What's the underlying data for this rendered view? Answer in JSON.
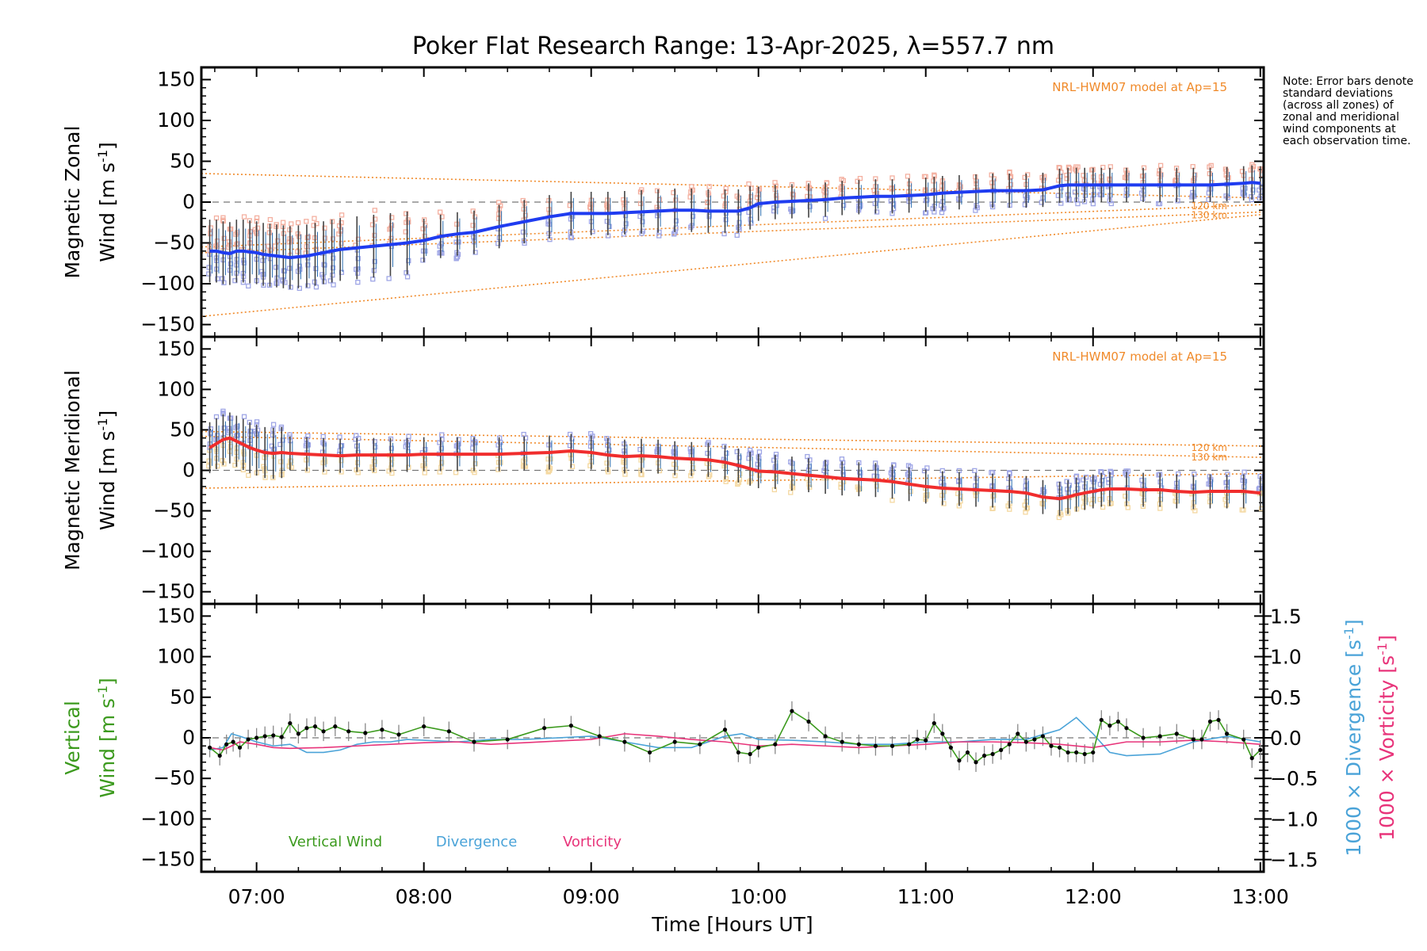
{
  "title": "Poker Flat Research Range: 13-Apr-2025, λ=557.7 nm",
  "note": "Note: Error bars denote standard deviations (across all zones) of zonal and meridional wind components at each observation time.",
  "colors": {
    "zonal": "#1f3cf0",
    "meridional": "#f02d2d",
    "vertical": "#3c9a1e",
    "divergence": "#4aa3d8",
    "vorticity": "#e8347a",
    "model": "#f08a2a",
    "zones_light_red": "#f4b0a0",
    "zones_light_blue": "#9fa6e6",
    "errorbar": "#444444"
  },
  "chart_data": [
    {
      "type": "line",
      "name": "zonal-panel",
      "ylabel_1": "Magnetic Zonal",
      "ylabel_2": "Wind [m s",
      "ylabel_sup": "-1",
      "ylabel_end": "]",
      "ylim": [
        -165,
        165
      ],
      "yticks": [
        -150,
        -100,
        -50,
        0,
        50,
        100,
        150
      ],
      "xlim": [
        6.67,
        13.02
      ],
      "model_label": "NRL-HWM07 model at Ap=15",
      "km_labels": [
        "120 km",
        "130 km"
      ],
      "series": [
        {
          "x": [
            6.72,
            6.76,
            6.8,
            6.84,
            6.88,
            6.92,
            6.96,
            7.0,
            7.04,
            7.08,
            7.12,
            7.16,
            7.2,
            7.25,
            7.3,
            7.35,
            7.4,
            7.45,
            7.5,
            7.6,
            7.7,
            7.8,
            7.9,
            8.0,
            8.1,
            8.2,
            8.3,
            8.45,
            8.6,
            8.75,
            8.88,
            9.0,
            9.1,
            9.2,
            9.3,
            9.4,
            9.5,
            9.6,
            9.7,
            9.8,
            9.88,
            9.95,
            10.0,
            10.1,
            10.2,
            10.3,
            10.4,
            10.5,
            10.6,
            10.7,
            10.8,
            10.9,
            11.0,
            11.05,
            11.1,
            11.2,
            11.3,
            11.4,
            11.5,
            11.6,
            11.7,
            11.8,
            11.85,
            11.9,
            11.95,
            12.0,
            12.05,
            12.1,
            12.2,
            12.3,
            12.4,
            12.5,
            12.6,
            12.7,
            12.8,
            12.9,
            12.95,
            13.0
          ],
          "values": [
            -60,
            -60,
            -62,
            -63,
            -60,
            -60,
            -61,
            -62,
            -64,
            -65,
            -66,
            -67,
            -68,
            -67,
            -66,
            -64,
            -62,
            -60,
            -58,
            -56,
            -54,
            -52,
            -50,
            -47,
            -42,
            -39,
            -37,
            -30,
            -24,
            -18,
            -14,
            -14,
            -14,
            -13,
            -12,
            -11,
            -10,
            -10,
            -11,
            -11,
            -11,
            -7,
            -2,
            0,
            1,
            2,
            3,
            5,
            6,
            7,
            7,
            8,
            9,
            10,
            11,
            12,
            13,
            14,
            14,
            14,
            15,
            20,
            21,
            21,
            21,
            21,
            21,
            21,
            21,
            21,
            21,
            21,
            21,
            21,
            22,
            23,
            24,
            23
          ]
        },
        {
          "name": "120 km",
          "x": [
            6.67,
            13.02
          ],
          "values": [
            -55,
            -3
          ]
        },
        {
          "name": "130 km",
          "x": [
            6.67,
            13.02
          ],
          "values": [
            -62,
            -12
          ]
        },
        {
          "x": [
            6.67,
            13.02
          ],
          "values": [
            35,
            5
          ]
        },
        {
          "x": [
            6.67,
            13.02
          ],
          "values": [
            -140,
            -15
          ]
        }
      ]
    },
    {
      "type": "line",
      "name": "meridional-panel",
      "ylabel_1": "Magnetic Meridional",
      "ylabel_2": "Wind [m s",
      "ylabel_sup": "-1",
      "ylabel_end": "]",
      "ylim": [
        -165,
        165
      ],
      "yticks": [
        -150,
        -100,
        -50,
        0,
        50,
        100,
        150
      ],
      "xlim": [
        6.67,
        13.02
      ],
      "model_label": "NRL-HWM07 model at Ap=15",
      "km_labels": [
        "120 km",
        "130 km"
      ],
      "series": [
        {
          "x": [
            6.72,
            6.76,
            6.8,
            6.84,
            6.88,
            6.92,
            6.96,
            7.0,
            7.05,
            7.1,
            7.15,
            7.2,
            7.3,
            7.4,
            7.5,
            7.6,
            7.7,
            7.8,
            7.9,
            8.0,
            8.1,
            8.2,
            8.3,
            8.45,
            8.6,
            8.75,
            8.88,
            9.0,
            9.1,
            9.2,
            9.3,
            9.4,
            9.5,
            9.6,
            9.7,
            9.8,
            9.88,
            9.95,
            10.0,
            10.1,
            10.2,
            10.3,
            10.4,
            10.5,
            10.6,
            10.7,
            10.8,
            10.9,
            11.0,
            11.1,
            11.2,
            11.3,
            11.4,
            11.5,
            11.6,
            11.7,
            11.8,
            11.85,
            11.9,
            11.95,
            12.0,
            12.05,
            12.1,
            12.2,
            12.3,
            12.4,
            12.5,
            12.6,
            12.7,
            12.8,
            12.9,
            13.0
          ],
          "values": [
            28,
            33,
            38,
            40,
            36,
            32,
            28,
            25,
            22,
            21,
            22,
            21,
            20,
            19,
            18,
            19,
            19,
            19,
            19,
            20,
            20,
            20,
            20,
            20,
            21,
            22,
            24,
            22,
            19,
            17,
            18,
            17,
            15,
            14,
            13,
            10,
            6,
            2,
            -1,
            -2,
            -4,
            -6,
            -8,
            -10,
            -11,
            -12,
            -14,
            -17,
            -20,
            -22,
            -23,
            -24,
            -25,
            -26,
            -28,
            -33,
            -35,
            -33,
            -30,
            -28,
            -26,
            -24,
            -23,
            -23,
            -24,
            -24,
            -26,
            -27,
            -26,
            -26,
            -26,
            -28
          ]
        },
        {
          "name": "120 km",
          "x": [
            6.67,
            13.02
          ],
          "values": [
            48,
            30
          ]
        },
        {
          "name": "130 km",
          "x": [
            6.67,
            13.02
          ],
          "values": [
            42,
            16
          ]
        },
        {
          "x": [
            6.67,
            13.02
          ],
          "values": [
            -22,
            -4
          ]
        }
      ]
    },
    {
      "type": "line",
      "name": "vertical-panel",
      "ylabel_1": "Vertical",
      "ylabel_2": "Wind [m s",
      "ylabel_sup": "-1",
      "ylabel_end": "]",
      "ylim": [
        -165,
        165
      ],
      "yticks": [
        -150,
        -100,
        -50,
        0,
        50,
        100,
        150
      ],
      "y2lim": [
        -1.65,
        1.65
      ],
      "y2ticks": [
        -1.5,
        -1.0,
        -0.5,
        0.0,
        0.5,
        1.0,
        1.5
      ],
      "y2tick_labels": [
        "−1.5",
        "−1.0",
        "−0.5",
        "0.0",
        "0.5",
        "1.0",
        "1.5"
      ],
      "y2label_div_1": "1000 × Divergence [s",
      "y2label_div_sup": "-1",
      "y2label_div_end": "]",
      "y2label_vor_1": "1000 × Vorticity [s",
      "y2label_vor_sup": "-1",
      "y2label_vor_end": "]",
      "xlim": [
        6.67,
        13.02
      ],
      "xticks": [
        7,
        8,
        9,
        10,
        11,
        12,
        13
      ],
      "xtick_labels": [
        "07:00",
        "08:00",
        "09:00",
        "10:00",
        "11:00",
        "12:00",
        "13:00"
      ],
      "xlabel": "Time [Hours UT]",
      "legend": [
        "Vertical Wind",
        "Divergence",
        "Vorticity"
      ],
      "series": [
        {
          "name": "Vertical Wind",
          "x": [
            6.72,
            6.78,
            6.82,
            6.86,
            6.9,
            6.95,
            7.0,
            7.05,
            7.1,
            7.15,
            7.2,
            7.25,
            7.3,
            7.35,
            7.4,
            7.47,
            7.55,
            7.65,
            7.75,
            7.85,
            8.0,
            8.15,
            8.3,
            8.5,
            8.72,
            8.88,
            9.05,
            9.2,
            9.35,
            9.5,
            9.65,
            9.8,
            9.88,
            9.95,
            10.0,
            10.1,
            10.2,
            10.3,
            10.4,
            10.5,
            10.6,
            10.7,
            10.8,
            10.9,
            10.95,
            11.0,
            11.05,
            11.1,
            11.15,
            11.2,
            11.25,
            11.3,
            11.35,
            11.4,
            11.45,
            11.5,
            11.55,
            11.6,
            11.65,
            11.7,
            11.75,
            11.8,
            11.85,
            11.9,
            11.95,
            12.0,
            12.05,
            12.1,
            12.15,
            12.2,
            12.3,
            12.4,
            12.5,
            12.6,
            12.65,
            12.7,
            12.75,
            12.8,
            12.9,
            12.95,
            13.0
          ],
          "values": [
            -12,
            -22,
            -8,
            -5,
            -12,
            -2,
            0,
            2,
            3,
            1,
            18,
            5,
            12,
            14,
            8,
            14,
            8,
            6,
            10,
            4,
            14,
            8,
            -5,
            -2,
            12,
            15,
            2,
            -5,
            -18,
            -5,
            -8,
            10,
            -18,
            -20,
            -12,
            -8,
            33,
            20,
            2,
            -5,
            -8,
            -10,
            -10,
            -8,
            -2,
            -3,
            18,
            5,
            -12,
            -28,
            -18,
            -30,
            -22,
            -20,
            -15,
            -8,
            5,
            -5,
            -2,
            2,
            -10,
            -12,
            -18,
            -18,
            -20,
            -18,
            22,
            15,
            20,
            12,
            0,
            2,
            5,
            -2,
            -2,
            20,
            22,
            5,
            -2,
            -25,
            -15
          ]
        },
        {
          "name": "Divergence",
          "x": [
            6.72,
            6.8,
            6.85,
            6.9,
            7.0,
            7.1,
            7.2,
            7.3,
            7.4,
            7.5,
            7.6,
            7.7,
            7.8,
            7.9,
            8.0,
            8.2,
            8.4,
            8.6,
            8.8,
            9.0,
            9.2,
            9.4,
            9.6,
            9.8,
            9.9,
            10.0,
            10.2,
            10.4,
            10.6,
            10.8,
            11.0,
            11.2,
            11.4,
            11.6,
            11.8,
            11.9,
            12.0,
            12.1,
            12.2,
            12.4,
            12.6,
            12.8,
            13.0
          ],
          "values": [
            -0.15,
            -0.12,
            0.05,
            0.02,
            -0.05,
            -0.1,
            -0.08,
            -0.18,
            -0.18,
            -0.15,
            -0.08,
            -0.05,
            -0.05,
            -0.02,
            -0.03,
            -0.05,
            -0.02,
            -0.02,
            0.0,
            0.02,
            -0.05,
            -0.12,
            -0.12,
            0.02,
            0.05,
            -0.02,
            -0.03,
            -0.05,
            -0.08,
            -0.08,
            -0.05,
            -0.05,
            -0.02,
            -0.02,
            0.1,
            0.25,
            0.05,
            -0.18,
            -0.22,
            -0.2,
            -0.05,
            0.02,
            -0.05
          ]
        },
        {
          "name": "Vorticity",
          "x": [
            6.72,
            6.8,
            6.9,
            7.0,
            7.1,
            7.2,
            7.4,
            7.6,
            7.8,
            8.0,
            8.2,
            8.4,
            8.6,
            8.8,
            9.0,
            9.2,
            9.4,
            9.6,
            9.8,
            10.0,
            10.2,
            10.4,
            10.6,
            10.8,
            11.0,
            11.2,
            11.4,
            11.6,
            11.8,
            12.0,
            12.2,
            12.4,
            12.6,
            12.8,
            13.0
          ],
          "values": [
            -0.12,
            -0.15,
            -0.05,
            -0.08,
            -0.12,
            -0.13,
            -0.12,
            -0.1,
            -0.08,
            -0.06,
            -0.05,
            -0.08,
            -0.06,
            -0.04,
            -0.02,
            0.05,
            0.02,
            -0.02,
            -0.05,
            -0.1,
            -0.08,
            -0.1,
            -0.12,
            -0.1,
            -0.08,
            -0.05,
            -0.05,
            -0.06,
            -0.08,
            -0.12,
            -0.05,
            -0.05,
            -0.03,
            -0.05,
            -0.08
          ]
        }
      ]
    }
  ]
}
